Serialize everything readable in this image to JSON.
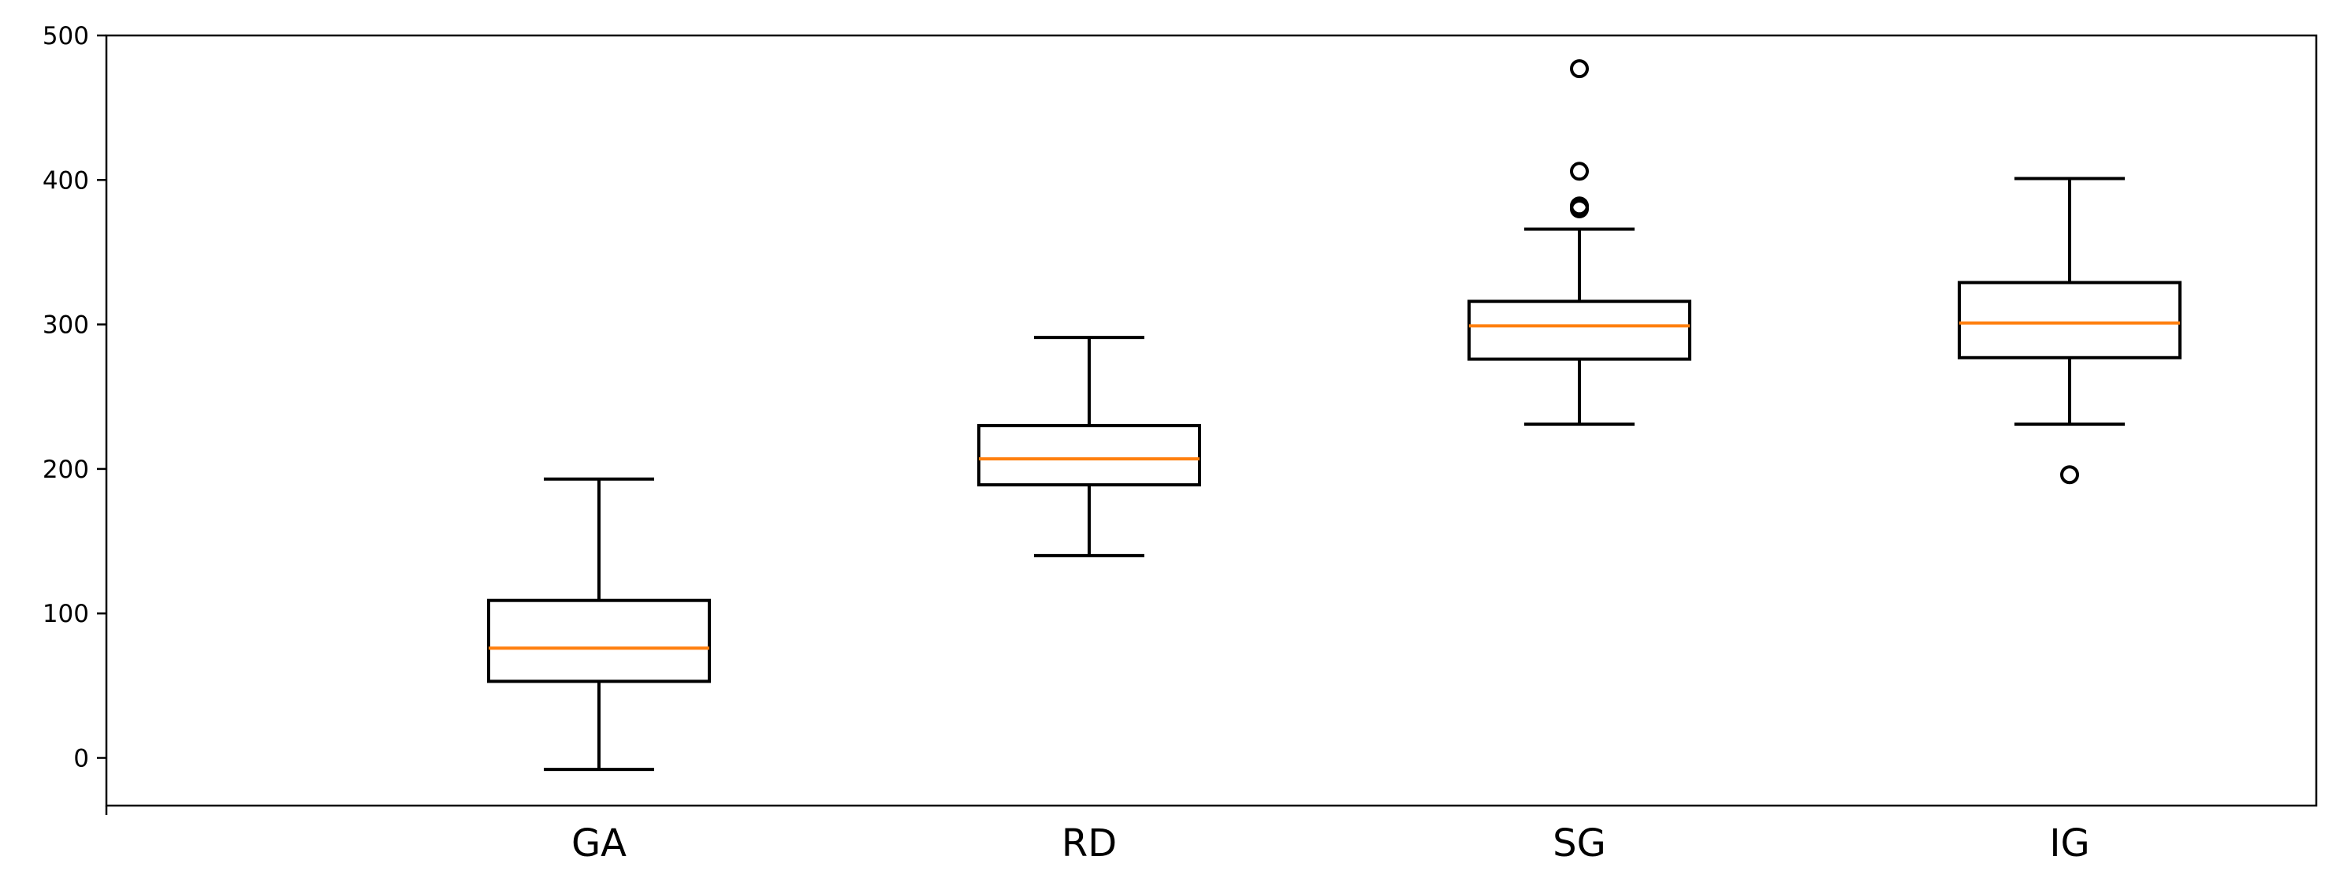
{
  "chart_data": {
    "type": "boxplot",
    "title": "",
    "xlabel": "",
    "ylabel": "",
    "ylim": [
      -33,
      500
    ],
    "yticks": [
      0,
      100,
      200,
      300,
      400,
      500
    ],
    "grid": false,
    "categories": [
      "GA",
      "RD",
      "SG",
      "IG"
    ],
    "boxes": [
      {
        "label": "GA",
        "whisker_low": -8,
        "q1": 53,
        "median": 76,
        "q3": 109,
        "whisker_high": 193,
        "outliers": []
      },
      {
        "label": "RD",
        "whisker_low": 140,
        "q1": 189,
        "median": 207,
        "q3": 230,
        "whisker_high": 291,
        "outliers": []
      },
      {
        "label": "SG",
        "whisker_low": 231,
        "q1": 276,
        "median": 299,
        "q3": 316,
        "whisker_high": 366,
        "outliers": [
          380,
          382,
          406,
          477
        ]
      },
      {
        "label": "IG",
        "whisker_low": 231,
        "q1": 277,
        "median": 301,
        "q3": 329,
        "whisker_high": 401,
        "outliers": [
          196
        ]
      }
    ],
    "colors": {
      "box": "#000000",
      "median": "#ff7f0e",
      "outlier": "#000000"
    }
  }
}
